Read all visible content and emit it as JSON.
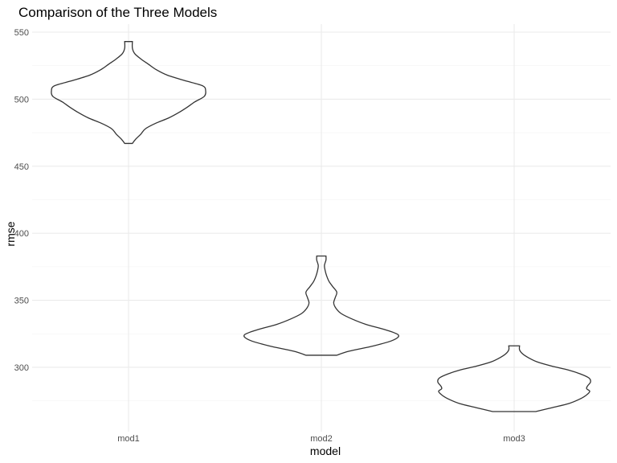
{
  "chart_data": {
    "type": "violin",
    "title": "Comparison of the Three Models",
    "xlabel": "model",
    "ylabel": "rmse",
    "categories": [
      "mod1",
      "mod2",
      "mod3"
    ],
    "ylim": [
      252,
      556
    ],
    "yticks": [
      300,
      350,
      400,
      450,
      500,
      550
    ],
    "grid": true,
    "legend": "none",
    "line_color": "#333333",
    "grid_color": "#ebebeb",
    "series": [
      {
        "category": "mod1",
        "min": 467,
        "max": 543,
        "profile": [
          [
            467,
            0.05
          ],
          [
            470,
            0.09
          ],
          [
            474,
            0.16
          ],
          [
            478,
            0.22
          ],
          [
            482,
            0.35
          ],
          [
            486,
            0.52
          ],
          [
            490,
            0.65
          ],
          [
            494,
            0.76
          ],
          [
            498,
            0.86
          ],
          [
            502,
            0.98
          ],
          [
            506,
            1.0
          ],
          [
            510,
            0.96
          ],
          [
            514,
            0.72
          ],
          [
            518,
            0.5
          ],
          [
            522,
            0.36
          ],
          [
            526,
            0.26
          ],
          [
            530,
            0.16
          ],
          [
            534,
            0.08
          ],
          [
            538,
            0.05
          ],
          [
            543,
            0.05
          ]
        ]
      },
      {
        "category": "mod2",
        "min": 309,
        "max": 383,
        "profile": [
          [
            309,
            0.2
          ],
          [
            312,
            0.36
          ],
          [
            316,
            0.68
          ],
          [
            320,
            0.92
          ],
          [
            324,
            1.0
          ],
          [
            328,
            0.83
          ],
          [
            332,
            0.58
          ],
          [
            336,
            0.4
          ],
          [
            340,
            0.26
          ],
          [
            344,
            0.19
          ],
          [
            348,
            0.16
          ],
          [
            352,
            0.18
          ],
          [
            356,
            0.2
          ],
          [
            360,
            0.15
          ],
          [
            364,
            0.1
          ],
          [
            368,
            0.07
          ],
          [
            372,
            0.05
          ],
          [
            376,
            0.04
          ],
          [
            380,
            0.06
          ],
          [
            383,
            0.06
          ]
        ]
      },
      {
        "category": "mod3",
        "min": 267,
        "max": 316,
        "profile": [
          [
            267,
            0.28
          ],
          [
            270,
            0.5
          ],
          [
            273,
            0.71
          ],
          [
            276,
            0.84
          ],
          [
            279,
            0.93
          ],
          [
            282,
            0.98
          ],
          [
            284,
            0.94
          ],
          [
            286,
            0.95
          ],
          [
            289,
            0.99
          ],
          [
            292,
            0.97
          ],
          [
            295,
            0.86
          ],
          [
            298,
            0.7
          ],
          [
            301,
            0.48
          ],
          [
            304,
            0.3
          ],
          [
            307,
            0.19
          ],
          [
            310,
            0.11
          ],
          [
            313,
            0.07
          ],
          [
            316,
            0.07
          ]
        ]
      }
    ]
  }
}
